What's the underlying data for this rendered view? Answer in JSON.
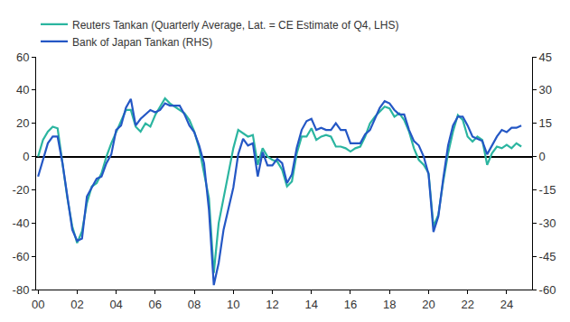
{
  "chart_data": {
    "type": "line",
    "x": [
      2000,
      2000.25,
      2000.5,
      2000.75,
      2001,
      2001.25,
      2001.5,
      2001.75,
      2002,
      2002.25,
      2002.5,
      2002.75,
      2003,
      2003.25,
      2003.5,
      2003.75,
      2004,
      2004.25,
      2004.5,
      2004.75,
      2005,
      2005.25,
      2005.5,
      2005.75,
      2006,
      2006.25,
      2006.5,
      2006.75,
      2007,
      2007.25,
      2007.5,
      2007.75,
      2008,
      2008.25,
      2008.5,
      2008.75,
      2009,
      2009.25,
      2009.5,
      2009.75,
      2010,
      2010.25,
      2010.5,
      2010.75,
      2011,
      2011.25,
      2011.5,
      2011.75,
      2012,
      2012.25,
      2012.5,
      2012.75,
      2013,
      2013.25,
      2013.5,
      2013.75,
      2014,
      2014.25,
      2014.5,
      2014.75,
      2015,
      2015.25,
      2015.5,
      2015.75,
      2016,
      2016.25,
      2016.5,
      2016.75,
      2017,
      2017.25,
      2017.5,
      2017.75,
      2018,
      2018.25,
      2018.5,
      2018.75,
      2019,
      2019.25,
      2019.5,
      2019.75,
      2020,
      2020.25,
      2020.5,
      2020.75,
      2021,
      2021.25,
      2021.5,
      2021.75,
      2022,
      2022.25,
      2022.5,
      2022.75,
      2023,
      2023.25,
      2023.5,
      2023.75,
      2024,
      2024.25,
      2024.5,
      2024.75
    ],
    "series": [
      {
        "name": "Reuters Tankan (Quarterly Average, Lat. = CE Estimate of Q4, LHS)",
        "color": "#2bb5a0",
        "axis": "y",
        "values": [
          0,
          10,
          15,
          18,
          17,
          -5,
          -25,
          -42,
          -52,
          -45,
          -28,
          -18,
          -16,
          -10,
          0,
          8,
          15,
          22,
          28,
          28,
          18,
          15,
          20,
          18,
          25,
          30,
          35,
          32,
          30,
          28,
          26,
          22,
          15,
          5,
          -10,
          -25,
          -70,
          -40,
          -25,
          -10,
          5,
          16,
          14,
          12,
          13,
          -5,
          5,
          0,
          -2,
          -3,
          -8,
          -18,
          -15,
          2,
          12,
          12,
          17,
          10,
          12,
          13,
          12,
          6,
          6,
          5,
          3,
          5,
          6,
          12,
          20,
          24,
          27,
          30,
          29,
          24,
          26,
          22,
          15,
          5,
          -2,
          -5,
          -10,
          -42,
          -35,
          -15,
          2,
          15,
          25,
          22,
          12,
          9,
          12,
          10,
          -5,
          2,
          6,
          5,
          7,
          5,
          8,
          6
        ]
      },
      {
        "name": "Bank of Japan Tankan (RHS)",
        "color": "#2457c5",
        "axis": "y2",
        "values": [
          -9,
          -1,
          6,
          9,
          9,
          -3,
          -18,
          -33,
          -38,
          -37,
          -18,
          -14,
          -10,
          -9,
          -3,
          1,
          12,
          14,
          22,
          26,
          14,
          17,
          19,
          21,
          20,
          21,
          24,
          23,
          23,
          23,
          19,
          14,
          11,
          5,
          -3,
          -24,
          -58,
          -48,
          -33,
          -24,
          -14,
          1,
          8,
          5,
          6,
          -9,
          2,
          -4,
          -4,
          -1,
          -3,
          -12,
          -8,
          4,
          12,
          16,
          17,
          12,
          13,
          12,
          12,
          15,
          12,
          12,
          6,
          6,
          6,
          10,
          12,
          17,
          22,
          25,
          24,
          21,
          19,
          19,
          12,
          7,
          5,
          0,
          -8,
          -34,
          -27,
          -10,
          5,
          14,
          18,
          18,
          14,
          9,
          8,
          7,
          1,
          5,
          9,
          12,
          11,
          13,
          13,
          14
        ]
      }
    ],
    "xlim": [
      1999.9,
      2025.3
    ],
    "xticks": [
      {
        "value": 2000,
        "label": "00"
      },
      {
        "value": 2002,
        "label": "02"
      },
      {
        "value": 2004,
        "label": "04"
      },
      {
        "value": 2006,
        "label": "06"
      },
      {
        "value": 2008,
        "label": "08"
      },
      {
        "value": 2010,
        "label": "10"
      },
      {
        "value": 2012,
        "label": "12"
      },
      {
        "value": 2014,
        "label": "14"
      },
      {
        "value": 2016,
        "label": "16"
      },
      {
        "value": 2018,
        "label": "18"
      },
      {
        "value": 2020,
        "label": "20"
      },
      {
        "value": 2022,
        "label": "22"
      },
      {
        "value": 2024,
        "label": "24"
      }
    ],
    "ylim": [
      -80,
      60
    ],
    "yticks": [
      -80,
      -60,
      -40,
      -20,
      0,
      20,
      40,
      60
    ],
    "y2lim": [
      -60,
      45
    ],
    "y2ticks": [
      -60,
      -45,
      -30,
      -15,
      0,
      15,
      30,
      45
    ],
    "grid": false,
    "legend": "top-left"
  }
}
